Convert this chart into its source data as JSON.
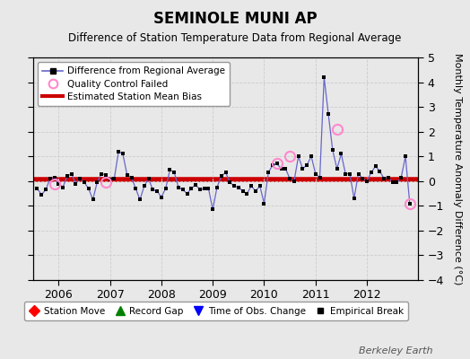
{
  "title": "SEMINOLE MUNI AP",
  "subtitle": "Difference of Station Temperature Data from Regional Average",
  "ylabel": "Monthly Temperature Anomaly Difference (°C)",
  "bias": 0.05,
  "ylim": [
    -4,
    5
  ],
  "yticks": [
    -4,
    -3,
    -2,
    -1,
    0,
    1,
    2,
    3,
    4,
    5
  ],
  "background_color": "#e8e8e8",
  "plot_bg_color": "#e8e8e8",
  "line_color": "#6666cc",
  "marker_color": "#000000",
  "bias_color": "#cc0000",
  "qc_color": "#ff88cc",
  "watermark": "Berkeley Earth",
  "x_start_year": 2005.5,
  "x_end_year": 2013.0,
  "time_series": [
    2005.583,
    2005.667,
    2005.75,
    2005.833,
    2005.917,
    2006.0,
    2006.083,
    2006.167,
    2006.25,
    2006.333,
    2006.417,
    2006.5,
    2006.583,
    2006.667,
    2006.75,
    2006.833,
    2006.917,
    2007.0,
    2007.083,
    2007.167,
    2007.25,
    2007.333,
    2007.417,
    2007.5,
    2007.583,
    2007.667,
    2007.75,
    2007.833,
    2007.917,
    2008.0,
    2008.083,
    2008.167,
    2008.25,
    2008.333,
    2008.417,
    2008.5,
    2008.583,
    2008.667,
    2008.75,
    2008.833,
    2008.917,
    2009.0,
    2009.083,
    2009.167,
    2009.25,
    2009.333,
    2009.417,
    2009.5,
    2009.583,
    2009.667,
    2009.75,
    2009.833,
    2009.917,
    2010.0,
    2010.083,
    2010.167,
    2010.25,
    2010.333,
    2010.417,
    2010.5,
    2010.583,
    2010.667,
    2010.75,
    2010.833,
    2010.917,
    2011.0,
    2011.083,
    2011.167,
    2011.25,
    2011.333,
    2011.417,
    2011.5,
    2011.583,
    2011.667,
    2011.75,
    2011.833,
    2011.917,
    2012.0,
    2012.083,
    2012.167,
    2012.25,
    2012.333,
    2012.417,
    2012.5,
    2012.583,
    2012.667,
    2012.75,
    2012.833
  ],
  "values": [
    -0.3,
    -0.55,
    -0.35,
    0.1,
    0.15,
    -0.1,
    -0.25,
    0.2,
    0.3,
    -0.1,
    0.1,
    -0.05,
    -0.3,
    -0.75,
    -0.05,
    0.3,
    0.25,
    0.05,
    0.1,
    1.2,
    1.1,
    0.25,
    0.15,
    -0.3,
    -0.75,
    -0.2,
    0.1,
    -0.35,
    -0.4,
    -0.65,
    -0.3,
    0.45,
    0.35,
    -0.25,
    -0.35,
    -0.5,
    -0.3,
    -0.15,
    -0.35,
    -0.3,
    -0.3,
    -1.15,
    -0.25,
    0.2,
    0.35,
    -0.05,
    -0.2,
    -0.25,
    -0.4,
    -0.5,
    -0.2,
    -0.4,
    -0.2,
    -0.9,
    0.35,
    0.65,
    0.7,
    0.5,
    0.5,
    0.1,
    0.0,
    1.0,
    0.5,
    0.65,
    1.0,
    0.3,
    0.15,
    4.2,
    2.7,
    1.25,
    0.5,
    1.1,
    0.3,
    0.3,
    -0.7,
    0.3,
    0.1,
    0.0,
    0.35,
    0.6,
    0.4,
    0.1,
    0.15,
    -0.05,
    -0.05,
    0.15,
    1.0,
    -0.9
  ],
  "qc_times": [
    2005.917,
    2006.917,
    2010.25,
    2010.5,
    2011.417,
    2012.833
  ],
  "qc_vals": [
    -0.1,
    -0.05,
    0.7,
    1.0,
    2.1,
    -0.9
  ],
  "xtick_positions": [
    2006.0,
    2007.0,
    2008.0,
    2009.0,
    2010.0,
    2011.0,
    2012.0
  ],
  "xtick_labels": [
    "2006",
    "2007",
    "2008",
    "2009",
    "2010",
    "2011",
    "2012"
  ]
}
